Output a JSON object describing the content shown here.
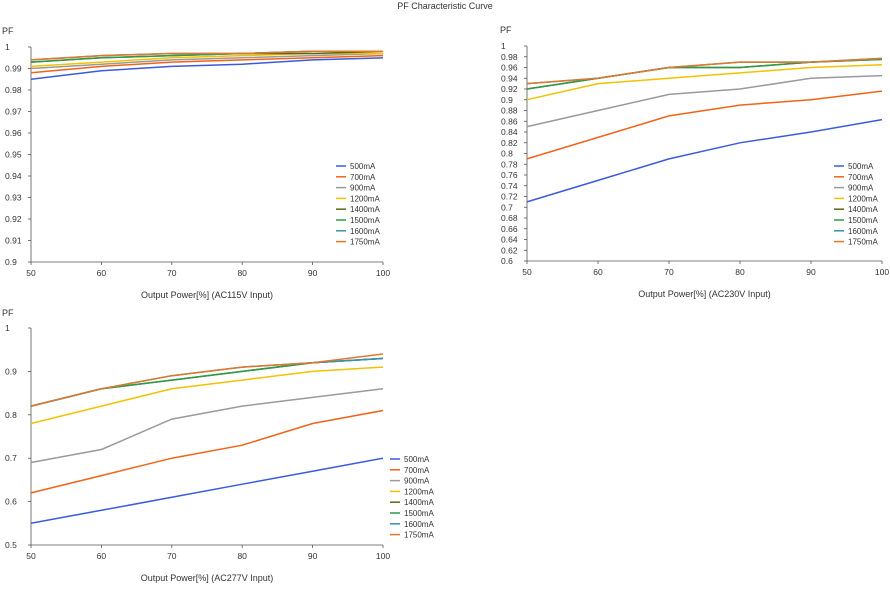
{
  "page": {
    "title": "PF Characteristic Curve"
  },
  "chart_data": [
    {
      "type": "line",
      "ylabel": "PF",
      "xlabel": "Output Power[%] (AC115V Input)",
      "x": [
        50,
        60,
        70,
        80,
        90,
        100
      ],
      "xticks": [
        "50",
        "60",
        "70",
        "80",
        "90",
        "100"
      ],
      "ylim": [
        0.9,
        1
      ],
      "yticks": [
        "0.9",
        "0.91",
        "0.92",
        "0.93",
        "0.94",
        "0.95",
        "0.96",
        "0.97",
        "0.98",
        "0.99",
        "1"
      ],
      "legend_position": "right",
      "series": [
        {
          "name": "500mA",
          "color": "#3b5bdb",
          "values": [
            0.985,
            0.989,
            0.991,
            0.992,
            0.994,
            0.995
          ]
        },
        {
          "name": "700mA",
          "color": "#f06418",
          "values": [
            0.988,
            0.991,
            0.993,
            0.994,
            0.995,
            0.996
          ]
        },
        {
          "name": "900mA",
          "color": "#9a9a9a",
          "values": [
            0.99,
            0.992,
            0.994,
            0.995,
            0.996,
            0.997
          ]
        },
        {
          "name": "1200mA",
          "color": "#f2c200",
          "values": [
            0.991,
            0.993,
            0.995,
            0.996,
            0.997,
            0.997
          ]
        },
        {
          "name": "1400mA",
          "color": "#5a6a14",
          "values": [
            0.993,
            0.995,
            0.996,
            0.997,
            0.997,
            0.998
          ]
        },
        {
          "name": "1500mA",
          "color": "#2f9a4b",
          "values": [
            0.993,
            0.995,
            0.996,
            0.997,
            0.998,
            0.998
          ]
        },
        {
          "name": "1600mA",
          "color": "#3a8fb5",
          "values": [
            0.994,
            0.996,
            0.997,
            0.997,
            0.998,
            0.998
          ]
        },
        {
          "name": "1750mA",
          "color": "#e0782c",
          "values": [
            0.994,
            0.996,
            0.997,
            0.997,
            0.998,
            0.998
          ]
        }
      ]
    },
    {
      "type": "line",
      "ylabel": "PF",
      "xlabel": "Output Power[%] (AC230V Input)",
      "x": [
        50,
        60,
        70,
        80,
        90,
        100
      ],
      "xticks": [
        "50",
        "60",
        "70",
        "80",
        "90",
        "100"
      ],
      "ylim": [
        0.6,
        1
      ],
      "yticks": [
        "0.6",
        "0.62",
        "0.64",
        "0.66",
        "0.68",
        "0.7",
        "0.72",
        "0.74",
        "0.76",
        "0.78",
        "0.8",
        "0.82",
        "0.84",
        "0.86",
        "0.88",
        "0.9",
        "0.92",
        "0.94",
        "0.96",
        "0.98",
        "1"
      ],
      "legend_position": "right",
      "series": [
        {
          "name": "500mA",
          "color": "#3b5bdb",
          "values": [
            0.71,
            0.75,
            0.79,
            0.82,
            0.84,
            0.863
          ]
        },
        {
          "name": "700mA",
          "color": "#f06418",
          "values": [
            0.79,
            0.83,
            0.87,
            0.89,
            0.9,
            0.916
          ]
        },
        {
          "name": "900mA",
          "color": "#9a9a9a",
          "values": [
            0.85,
            0.88,
            0.91,
            0.92,
            0.94,
            0.945
          ]
        },
        {
          "name": "1200mA",
          "color": "#f2c200",
          "values": [
            0.9,
            0.93,
            0.94,
            0.95,
            0.96,
            0.965
          ]
        },
        {
          "name": "1400mA",
          "color": "#5a6a14",
          "values": [
            0.92,
            0.94,
            0.96,
            0.96,
            0.97,
            0.975
          ]
        },
        {
          "name": "1500mA",
          "color": "#2f9a4b",
          "values": [
            0.92,
            0.94,
            0.96,
            0.96,
            0.97,
            0.975
          ]
        },
        {
          "name": "1600mA",
          "color": "#3a8fb5",
          "values": [
            0.93,
            0.94,
            0.96,
            0.97,
            0.97,
            0.977
          ]
        },
        {
          "name": "1750mA",
          "color": "#e0782c",
          "values": [
            0.93,
            0.94,
            0.96,
            0.97,
            0.97,
            0.977
          ]
        }
      ]
    },
    {
      "type": "line",
      "ylabel": "PF",
      "xlabel": "Output Power[%] (AC277V Input)",
      "x": [
        50,
        60,
        70,
        80,
        90,
        100
      ],
      "xticks": [
        "50",
        "60",
        "70",
        "80",
        "90",
        "100"
      ],
      "ylim": [
        0.5,
        1
      ],
      "yticks": [
        "0.5",
        "0.6",
        "0.7",
        "0.8",
        "0.9",
        "1"
      ],
      "legend_position": "right",
      "series": [
        {
          "name": "500mA",
          "color": "#3b5bdb",
          "values": [
            0.55,
            0.58,
            0.61,
            0.64,
            0.67,
            0.7
          ]
        },
        {
          "name": "700mA",
          "color": "#f06418",
          "values": [
            0.62,
            0.66,
            0.7,
            0.73,
            0.78,
            0.81
          ]
        },
        {
          "name": "900mA",
          "color": "#9a9a9a",
          "values": [
            0.69,
            0.72,
            0.79,
            0.82,
            0.84,
            0.86
          ]
        },
        {
          "name": "1200mA",
          "color": "#f2c200",
          "values": [
            0.78,
            0.82,
            0.86,
            0.88,
            0.9,
            0.91
          ]
        },
        {
          "name": "1400mA",
          "color": "#5a6a14",
          "values": [
            0.82,
            0.86,
            0.88,
            0.9,
            0.92,
            0.93
          ]
        },
        {
          "name": "1500mA",
          "color": "#2f9a4b",
          "values": [
            0.82,
            0.86,
            0.88,
            0.9,
            0.92,
            0.93
          ]
        },
        {
          "name": "1600mA",
          "color": "#3a8fb5",
          "values": [
            0.82,
            0.86,
            0.89,
            0.91,
            0.92,
            0.93
          ]
        },
        {
          "name": "1750mA",
          "color": "#e0782c",
          "values": [
            0.82,
            0.86,
            0.89,
            0.91,
            0.92,
            0.94
          ]
        }
      ]
    }
  ]
}
